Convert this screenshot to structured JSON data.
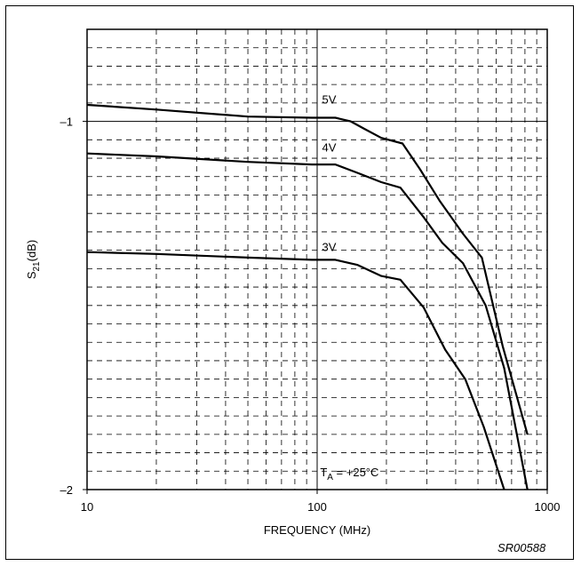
{
  "chart_data": {
    "type": "line",
    "xscale": "log",
    "xlim": [
      10,
      1000
    ],
    "ylim": [
      -2,
      -0.75
    ],
    "xlabel": "FREQUENCY (MHz)",
    "ylabel": {
      "main": "S",
      "sub": "21",
      "rest": "(dB)"
    },
    "x_ticks": [
      {
        "value": 10,
        "label": "10"
      },
      {
        "value": 100,
        "label": "100"
      },
      {
        "value": 1000,
        "label": "1000"
      }
    ],
    "y_ticks": [
      {
        "value": -1,
        "label": "–1"
      },
      {
        "value": -2,
        "label": "–2"
      }
    ],
    "series": [
      {
        "name": "5V",
        "label_at": [
          105,
          -0.94
        ],
        "points": [
          [
            10,
            -0.955
          ],
          [
            20,
            -0.968
          ],
          [
            50,
            -0.987
          ],
          [
            95,
            -0.99
          ],
          [
            120,
            -0.99
          ],
          [
            140,
            -1.0
          ],
          [
            160,
            -1.02
          ],
          [
            190,
            -1.045
          ],
          [
            235,
            -1.06
          ],
          [
            280,
            -1.13
          ],
          [
            340,
            -1.215
          ],
          [
            430,
            -1.305
          ],
          [
            520,
            -1.37
          ],
          [
            640,
            -1.61
          ],
          [
            820,
            -1.85
          ]
        ]
      },
      {
        "name": "4V",
        "label_at": [
          105,
          -1.07
        ],
        "points": [
          [
            10,
            -1.087
          ],
          [
            20,
            -1.095
          ],
          [
            50,
            -1.11
          ],
          [
            95,
            -1.117
          ],
          [
            120,
            -1.117
          ],
          [
            150,
            -1.14
          ],
          [
            190,
            -1.165
          ],
          [
            230,
            -1.18
          ],
          [
            290,
            -1.26
          ],
          [
            350,
            -1.33
          ],
          [
            430,
            -1.385
          ],
          [
            540,
            -1.5
          ],
          [
            650,
            -1.67
          ],
          [
            820,
            -2.0
          ]
        ]
      },
      {
        "name": "3V",
        "label_at": [
          105,
          -1.34
        ],
        "points": [
          [
            10,
            -1.355
          ],
          [
            20,
            -1.36
          ],
          [
            50,
            -1.37
          ],
          [
            95,
            -1.376
          ],
          [
            120,
            -1.376
          ],
          [
            150,
            -1.39
          ],
          [
            190,
            -1.42
          ],
          [
            230,
            -1.43
          ],
          [
            290,
            -1.505
          ],
          [
            360,
            -1.62
          ],
          [
            440,
            -1.7
          ],
          [
            530,
            -1.83
          ],
          [
            650,
            -2.0
          ]
        ]
      }
    ],
    "annotation": {
      "main": "T",
      "sub": "A",
      "rest": " = +25°C"
    },
    "grid": true
  },
  "figure_ref": "SR00588"
}
